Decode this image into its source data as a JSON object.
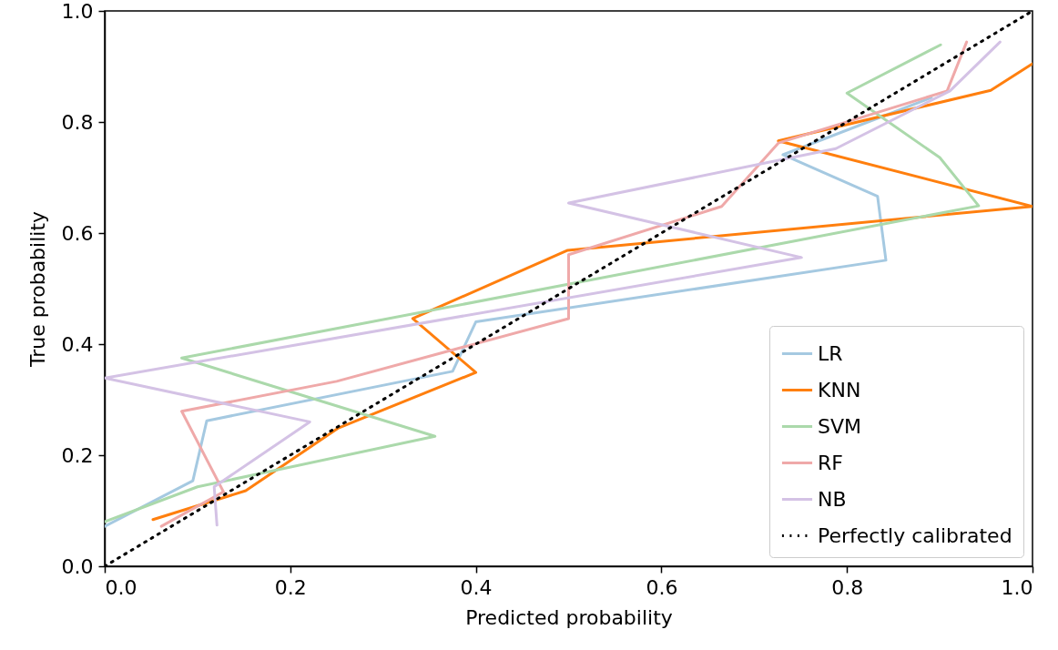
{
  "chart_data": {
    "type": "line",
    "xlabel": "Predicted probability",
    "ylabel": "True probability",
    "xlim": [
      0,
      1
    ],
    "ylim": [
      0,
      1
    ],
    "xticks": [
      {
        "value": 0,
        "label": "0.0"
      },
      0.2,
      0.4,
      0.6,
      0.8,
      {
        "value": 1,
        "label": "1.0"
      }
    ],
    "yticks": [
      {
        "value": 0,
        "label": "0.0"
      },
      0.2,
      0.4,
      0.6,
      0.8,
      {
        "value": 1,
        "label": "1.0"
      }
    ],
    "grid": false,
    "legend": "bottom right",
    "marker": "none",
    "series": [
      {
        "name": "LR",
        "color": "#a5c9e1",
        "x": [
          0,
          0.095,
          0.11,
          0.375,
          0.4,
          0.842,
          0.833,
          0.731,
          0.891
        ],
        "values": [
          0.072,
          0.154,
          0.262,
          0.351,
          0.44,
          0.551,
          0.666,
          0.741,
          0.844
        ]
      },
      {
        "name": "KNN",
        "color": "#ff7f0e",
        "x": [
          0.052,
          0.152,
          0.252,
          0.4,
          0.332,
          0.499,
          1.0,
          0.726,
          0.955,
          1.0
        ],
        "values": [
          0.084,
          0.136,
          0.249,
          0.349,
          0.446,
          0.569,
          0.648,
          0.766,
          0.857,
          0.905
        ]
      },
      {
        "name": "SVM",
        "color": "#abd9ab",
        "x": [
          0,
          0.1,
          0.356,
          0.083,
          0.942,
          0.9,
          0.8,
          0.901
        ],
        "values": [
          0.08,
          0.143,
          0.234,
          0.375,
          0.649,
          0.736,
          0.852,
          0.939
        ]
      },
      {
        "name": "RF",
        "color": "#efa9a9",
        "x": [
          0.061,
          0.128,
          0.083,
          0.25,
          0.5,
          0.5,
          0.665,
          0.726,
          0.908,
          0.929
        ],
        "values": [
          0.072,
          0.134,
          0.279,
          0.333,
          0.446,
          0.561,
          0.648,
          0.762,
          0.856,
          0.944
        ]
      },
      {
        "name": "NB",
        "color": "#d4c2e5",
        "x": [
          0.121,
          0.118,
          0.221,
          0,
          0.751,
          0.5,
          0.788,
          0.911,
          0.965
        ],
        "values": [
          0.074,
          0.143,
          0.26,
          0.339,
          0.556,
          0.654,
          0.752,
          0.856,
          0.944
        ]
      },
      {
        "name": "Perfectly calibrated",
        "color": "#000000",
        "line_style": "dotted",
        "x": [
          0,
          1
        ],
        "values": [
          0,
          1
        ]
      }
    ]
  }
}
